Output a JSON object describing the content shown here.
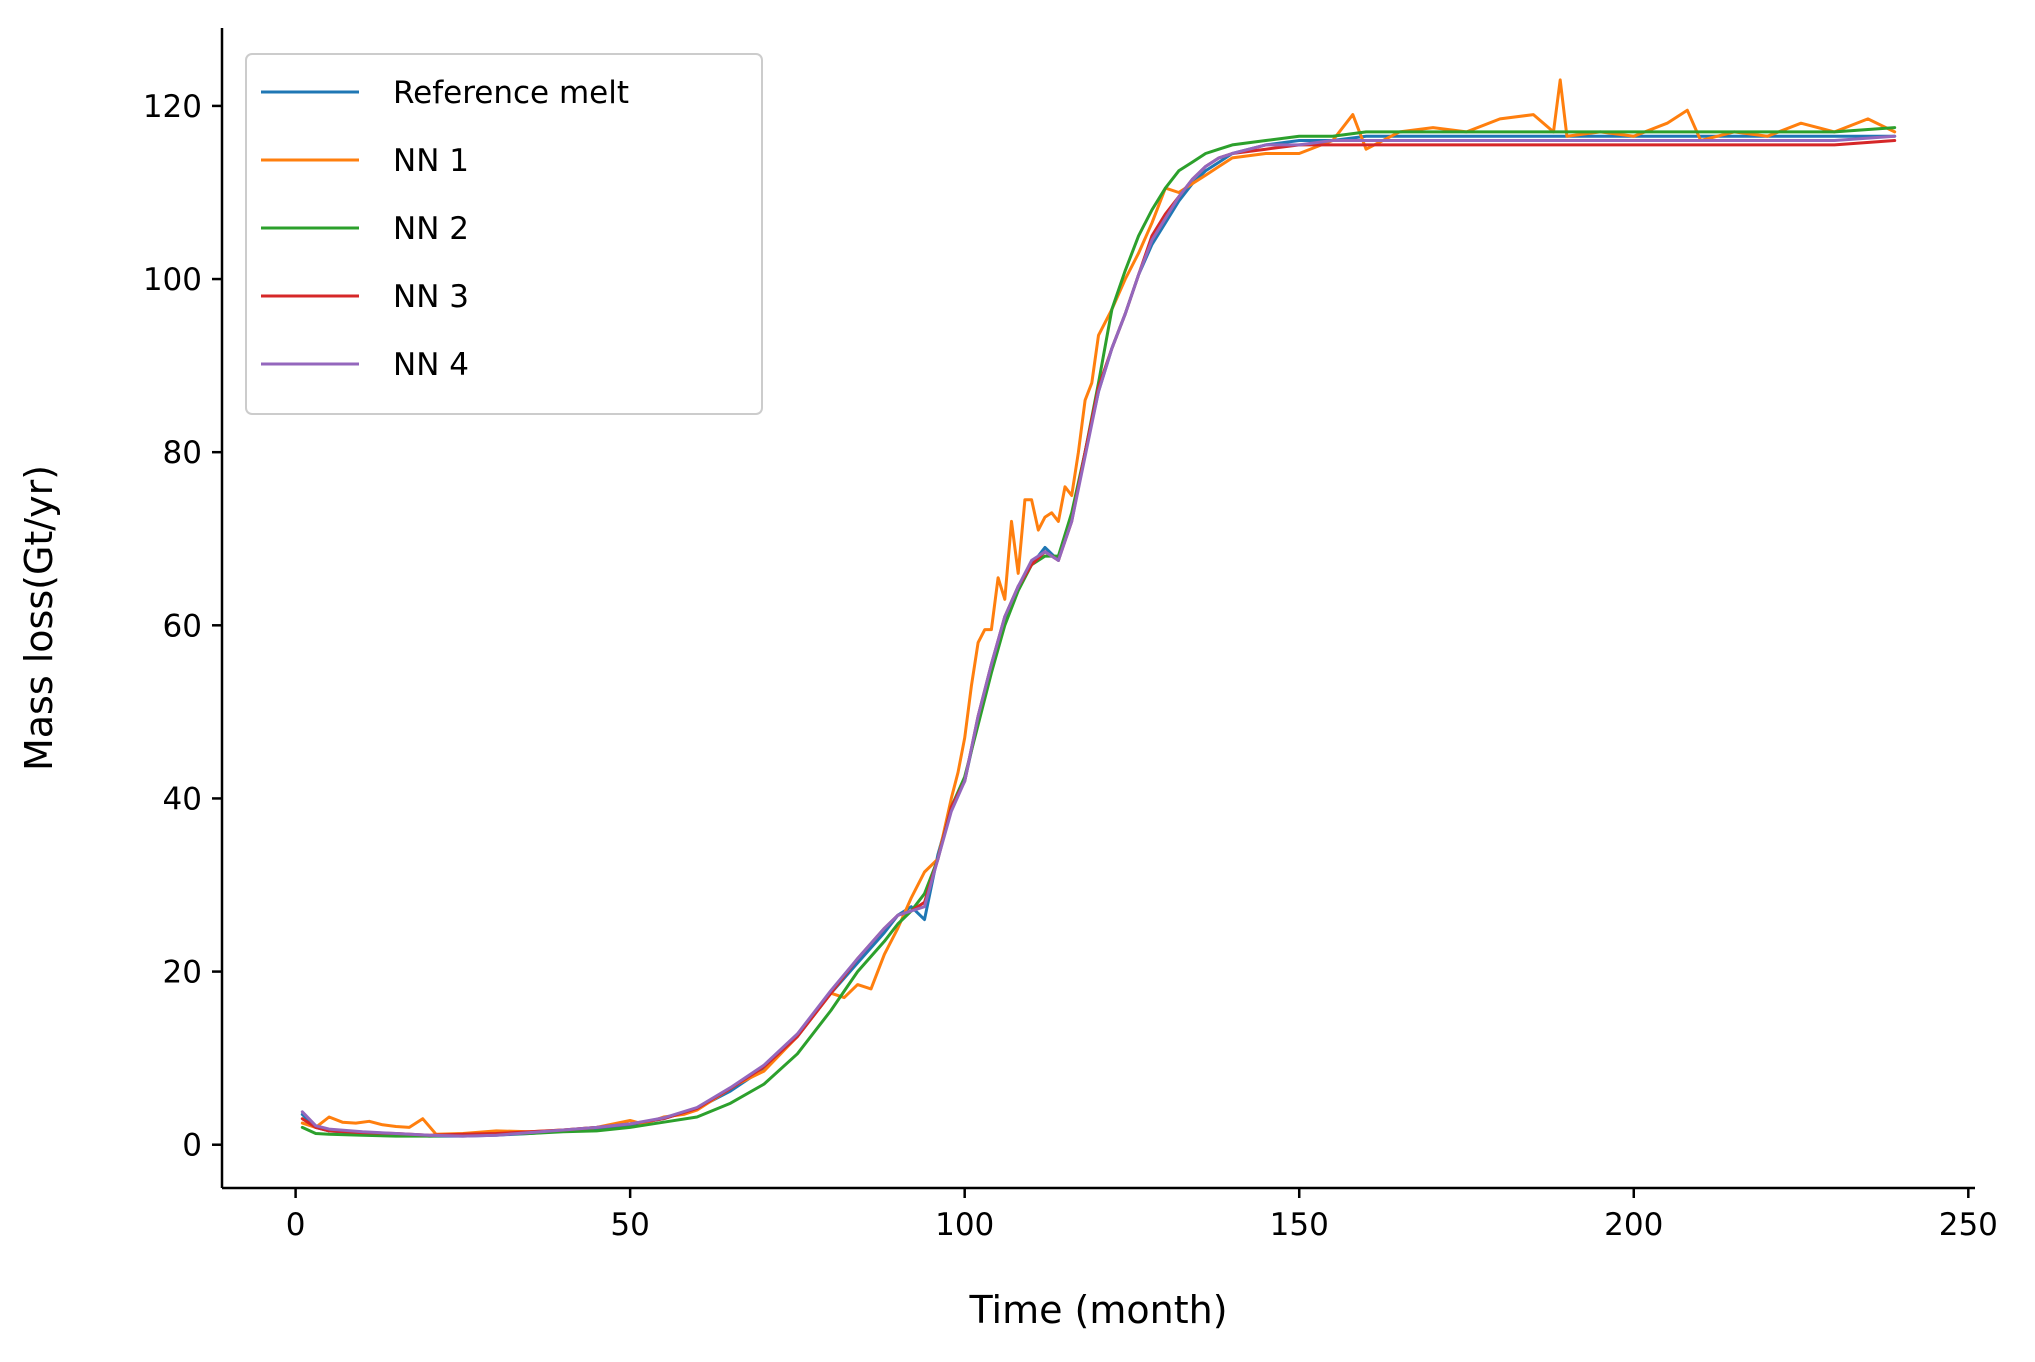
{
  "chart_data": {
    "type": "line",
    "title": "",
    "xlabel": "Time (month)",
    "ylabel": "Mass loss(Gt/yr)",
    "xlim": [
      -11,
      251
    ],
    "ylim": [
      -5,
      129
    ],
    "xticks": [
      0,
      50,
      100,
      150,
      200,
      250
    ],
    "yticks": [
      0,
      20,
      40,
      60,
      80,
      100,
      120
    ],
    "grid": false,
    "legend_position": "top-left",
    "series": [
      {
        "name": "Reference melt",
        "color": "#1f77b4",
        "x": [
          1,
          3,
          5,
          10,
          15,
          20,
          25,
          30,
          35,
          40,
          45,
          50,
          55,
          60,
          65,
          70,
          75,
          80,
          84,
          88,
          90,
          92,
          94,
          96,
          98,
          100,
          102,
          104,
          106,
          108,
          110,
          112,
          114,
          116,
          118,
          120,
          122,
          124,
          126,
          128,
          130,
          132,
          134,
          136,
          138,
          140,
          145,
          150,
          155,
          160,
          170,
          180,
          190,
          200,
          210,
          220,
          230,
          239
        ],
        "y": [
          3.5,
          2.0,
          1.6,
          1.3,
          1.2,
          1.0,
          1.0,
          1.1,
          1.3,
          1.6,
          1.9,
          2.3,
          3.0,
          4.2,
          6.2,
          8.8,
          12.5,
          17.5,
          21.0,
          24.5,
          26.5,
          27.5,
          26.0,
          33.5,
          39.0,
          42.0,
          49.0,
          55.0,
          60.5,
          64.5,
          67.0,
          69.0,
          67.5,
          72.5,
          80.0,
          87.0,
          92.0,
          96.0,
          100.5,
          104.0,
          106.5,
          109.0,
          111.0,
          112.5,
          113.5,
          114.5,
          115.5,
          116.0,
          116.0,
          116.5,
          116.5,
          116.5,
          116.5,
          116.5,
          116.5,
          116.5,
          116.5,
          116.5
        ]
      },
      {
        "name": "NN 1",
        "color": "#ff7f0e",
        "x": [
          1,
          3,
          5,
          7,
          9,
          11,
          13,
          15,
          17,
          19,
          21,
          25,
          30,
          35,
          40,
          45,
          50,
          52,
          55,
          58,
          60,
          63,
          66,
          70,
          75,
          80,
          82,
          84,
          86,
          88,
          90,
          92,
          94,
          96,
          98,
          99,
          100,
          101,
          102,
          103,
          104,
          105,
          106,
          107,
          108,
          109,
          110,
          111,
          112,
          113,
          114,
          115,
          116,
          117,
          118,
          119,
          120,
          122,
          124,
          126,
          128,
          130,
          132,
          134,
          136,
          138,
          140,
          145,
          150,
          155,
          158,
          160,
          165,
          170,
          175,
          180,
          185,
          188,
          189,
          190,
          195,
          200,
          205,
          208,
          210,
          215,
          220,
          225,
          230,
          235,
          239
        ],
        "y": [
          2.5,
          2.0,
          3.2,
          2.6,
          2.5,
          2.7,
          2.3,
          2.1,
          2.0,
          3.0,
          1.2,
          1.3,
          1.6,
          1.5,
          1.7,
          2.0,
          2.8,
          2.4,
          3.2,
          3.5,
          4.0,
          5.5,
          7.0,
          8.5,
          12.5,
          17.5,
          17.0,
          18.5,
          18.0,
          22.0,
          25.0,
          28.5,
          31.5,
          33.0,
          40.0,
          43.0,
          47.0,
          53.0,
          58.0,
          59.5,
          59.5,
          65.5,
          63.0,
          72.0,
          66.0,
          74.5,
          74.5,
          71.0,
          72.5,
          73.0,
          72.0,
          76.0,
          75.0,
          80.0,
          86.0,
          88.0,
          93.5,
          96.5,
          100.0,
          103.0,
          106.5,
          110.5,
          110.0,
          111.0,
          112.0,
          113.0,
          114.0,
          114.5,
          114.5,
          116.0,
          119.0,
          115.0,
          117.0,
          117.5,
          117.0,
          118.5,
          119.0,
          117.0,
          123.0,
          116.5,
          117.0,
          116.5,
          118.0,
          119.5,
          116.0,
          117.0,
          116.5,
          118.0,
          117.0,
          118.5,
          117.0
        ]
      },
      {
        "name": "NN 2",
        "color": "#2ca02c",
        "x": [
          1,
          3,
          5,
          10,
          15,
          20,
          25,
          30,
          35,
          40,
          45,
          50,
          55,
          60,
          65,
          70,
          75,
          80,
          84,
          88,
          90,
          92,
          94,
          96,
          98,
          100,
          102,
          104,
          106,
          108,
          110,
          112,
          114,
          116,
          118,
          120,
          122,
          124,
          126,
          128,
          130,
          132,
          134,
          136,
          138,
          140,
          145,
          150,
          155,
          160,
          170,
          180,
          190,
          200,
          210,
          220,
          230,
          239
        ],
        "y": [
          2.0,
          1.3,
          1.2,
          1.1,
          1.0,
          1.0,
          1.1,
          1.2,
          1.3,
          1.5,
          1.6,
          2.0,
          2.6,
          3.2,
          4.8,
          7.0,
          10.5,
          15.5,
          20.0,
          23.5,
          25.5,
          27.0,
          29.0,
          33.0,
          39.0,
          42.5,
          48.5,
          54.5,
          60.0,
          64.0,
          67.0,
          68.0,
          68.0,
          73.0,
          80.0,
          88.0,
          96.5,
          101.0,
          105.0,
          108.0,
          110.5,
          112.5,
          113.5,
          114.5,
          115.0,
          115.5,
          116.0,
          116.5,
          116.5,
          117.0,
          117.0,
          117.0,
          117.0,
          117.0,
          117.0,
          117.0,
          117.0,
          117.5
        ]
      },
      {
        "name": "NN 3",
        "color": "#d62728",
        "x": [
          1,
          3,
          5,
          10,
          15,
          20,
          25,
          30,
          35,
          40,
          45,
          50,
          55,
          60,
          65,
          70,
          75,
          80,
          84,
          88,
          90,
          92,
          94,
          96,
          98,
          100,
          102,
          104,
          106,
          108,
          110,
          112,
          114,
          116,
          118,
          120,
          122,
          124,
          126,
          128,
          130,
          132,
          134,
          136,
          138,
          140,
          145,
          150,
          155,
          160,
          170,
          180,
          190,
          200,
          210,
          220,
          230,
          239
        ],
        "y": [
          3.0,
          2.0,
          1.6,
          1.4,
          1.3,
          1.1,
          1.2,
          1.3,
          1.5,
          1.7,
          2.0,
          2.4,
          3.0,
          4.2,
          6.5,
          9.0,
          12.5,
          17.5,
          21.5,
          25.0,
          26.5,
          27.0,
          28.0,
          33.0,
          39.0,
          42.0,
          49.5,
          55.5,
          61.0,
          64.5,
          67.0,
          68.5,
          67.5,
          72.0,
          80.0,
          87.5,
          92.0,
          96.0,
          100.5,
          105.0,
          107.5,
          109.5,
          111.5,
          113.0,
          114.0,
          114.5,
          115.0,
          115.5,
          115.5,
          115.5,
          115.5,
          115.5,
          115.5,
          115.5,
          115.5,
          115.5,
          115.5,
          116.0
        ]
      },
      {
        "name": "NN 4",
        "color": "#9467bd",
        "x": [
          1,
          3,
          5,
          10,
          15,
          20,
          25,
          30,
          35,
          40,
          45,
          50,
          55,
          60,
          65,
          70,
          75,
          80,
          84,
          88,
          90,
          92,
          94,
          96,
          98,
          100,
          102,
          104,
          106,
          108,
          110,
          112,
          114,
          116,
          118,
          120,
          122,
          124,
          126,
          128,
          130,
          132,
          134,
          136,
          138,
          140,
          145,
          150,
          155,
          160,
          170,
          180,
          190,
          200,
          210,
          220,
          230,
          239
        ],
        "y": [
          3.8,
          2.2,
          1.8,
          1.5,
          1.3,
          1.1,
          1.0,
          1.1,
          1.4,
          1.7,
          2.0,
          2.4,
          3.1,
          4.3,
          6.6,
          9.2,
          12.8,
          17.8,
          21.5,
          25.0,
          26.5,
          27.0,
          27.5,
          33.0,
          38.5,
          42.0,
          49.5,
          55.5,
          61.0,
          64.5,
          67.5,
          68.5,
          67.5,
          72.0,
          79.5,
          87.0,
          92.0,
          96.0,
          100.5,
          104.5,
          107.0,
          109.5,
          111.5,
          113.0,
          114.0,
          114.5,
          115.5,
          115.5,
          116.0,
          116.0,
          116.0,
          116.0,
          116.0,
          116.0,
          116.0,
          116.0,
          116.0,
          116.5
        ]
      }
    ]
  }
}
